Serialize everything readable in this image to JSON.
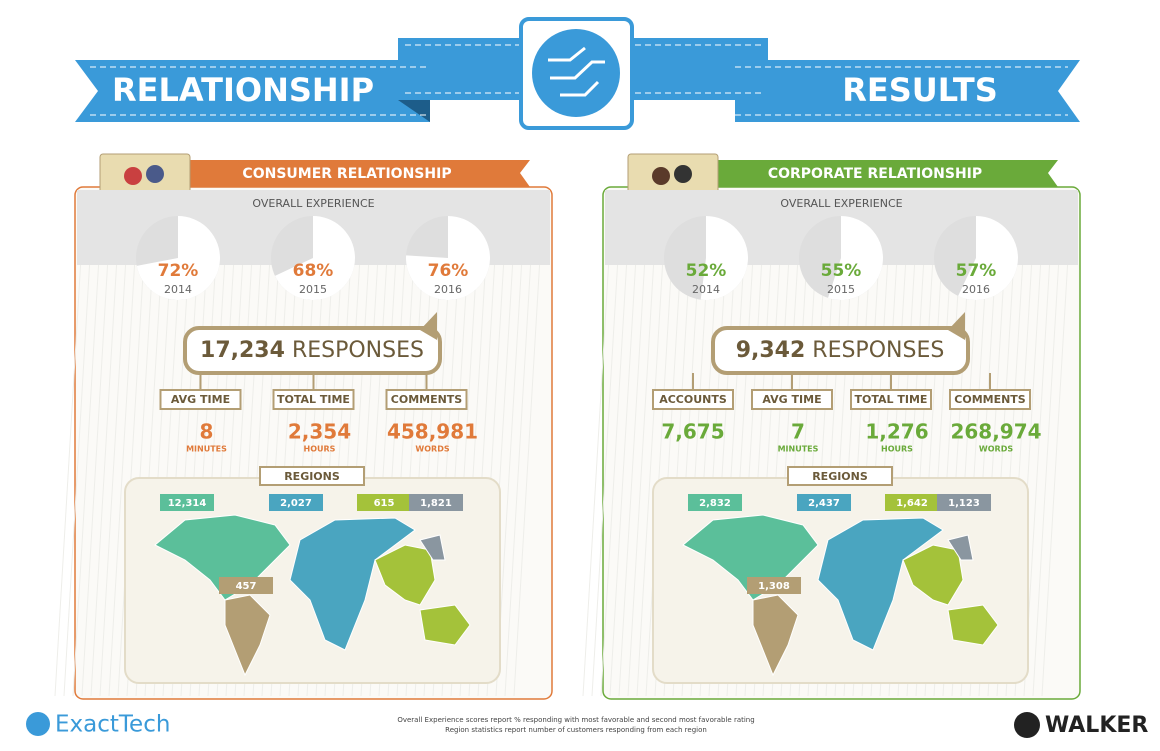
{
  "banner": {
    "left": "RELATIONSHIP",
    "right": "RESULTS"
  },
  "panels": [
    {
      "title": "CONSUMER RELATIONSHIP",
      "color": "#e07a3a",
      "subtitle": "OVERALL EXPERIENCE",
      "experience": [
        {
          "value": 72,
          "label": "72%",
          "year": "2014"
        },
        {
          "value": 68,
          "label": "68%",
          "year": "2015"
        },
        {
          "value": 76,
          "label": "76%",
          "year": "2016"
        }
      ],
      "responses": {
        "count": "17,234",
        "label": "RESPONSES"
      },
      "stats": [
        {
          "label": "AVG TIME",
          "value": "8",
          "unit": "MINUTES"
        },
        {
          "label": "TOTAL TIME",
          "value": "2,354",
          "unit": "HOURS"
        },
        {
          "label": "COMMENTS",
          "value": "458,981",
          "unit": "WORDS"
        }
      ],
      "regions_title": "REGIONS",
      "regions": [
        "12,314",
        "2,027",
        "615",
        "1,821",
        "457"
      ]
    },
    {
      "title": "CORPORATE RELATIONSHIP",
      "color": "#6aaa3a",
      "subtitle": "OVERALL EXPERIENCE",
      "experience": [
        {
          "value": 52,
          "label": "52%",
          "year": "2014"
        },
        {
          "value": 55,
          "label": "55%",
          "year": "2015"
        },
        {
          "value": 57,
          "label": "57%",
          "year": "2016"
        }
      ],
      "responses": {
        "count": "9,342",
        "label": "RESPONSES"
      },
      "stats": [
        {
          "label": "ACCOUNTS",
          "value": "7,675"
        },
        {
          "label": "AVG TIME",
          "value": "7",
          "unit": "MINUTES"
        },
        {
          "label": "TOTAL TIME",
          "value": "1,276",
          "unit": "HOURS"
        },
        {
          "label": "COMMENTS",
          "value": "268,974",
          "unit": "WORDS"
        }
      ],
      "regions_title": "REGIONS",
      "regions": [
        "2,832",
        "2,437",
        "1,642",
        "1,123",
        "1,308"
      ]
    }
  ],
  "footer": {
    "notes": [
      "Overall Experience scores report % responding with most favorable and second most favorable rating",
      "Region statistics report number of customers responding from each region"
    ],
    "left_logo": "ExactTech",
    "right_logo": "WALKER"
  }
}
